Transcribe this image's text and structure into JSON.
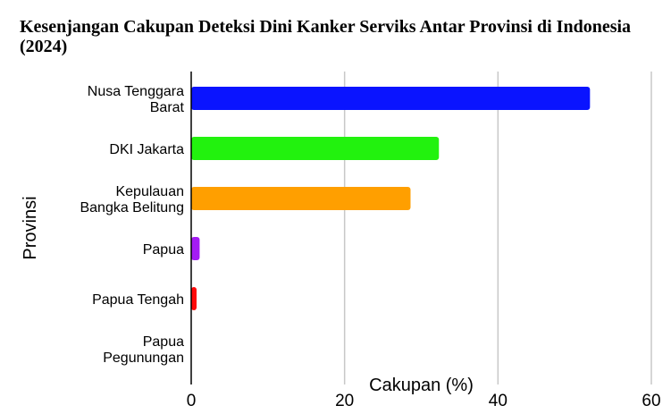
{
  "chart_data": {
    "type": "bar",
    "orientation": "horizontal",
    "title": "Kesenjangan Cakupan Deteksi Dini Kanker Serviks Antar Provinsi di Indonesia (2024)",
    "xlabel": "Cakupan (%)",
    "ylabel": "Provinsi",
    "categories": [
      [
        "Nusa Tenggara",
        "Barat"
      ],
      [
        "DKI Jakarta"
      ],
      [
        "Kepulauan",
        "Bangka Belitung"
      ],
      [
        "Papua"
      ],
      [
        "Papua Tengah"
      ],
      [
        "Papua",
        "Pegunungan"
      ]
    ],
    "values": [
      52,
      32.3,
      28.6,
      1.1,
      0.7,
      0
    ],
    "colors": [
      "#0a14ff",
      "#22f20e",
      "#ff9f00",
      "#a41cf4",
      "#ff0a0a",
      "#ffffff"
    ],
    "xlim": [
      0,
      60
    ],
    "xticks": [
      "0",
      "20",
      "40",
      "60"
    ],
    "grid": true
  }
}
